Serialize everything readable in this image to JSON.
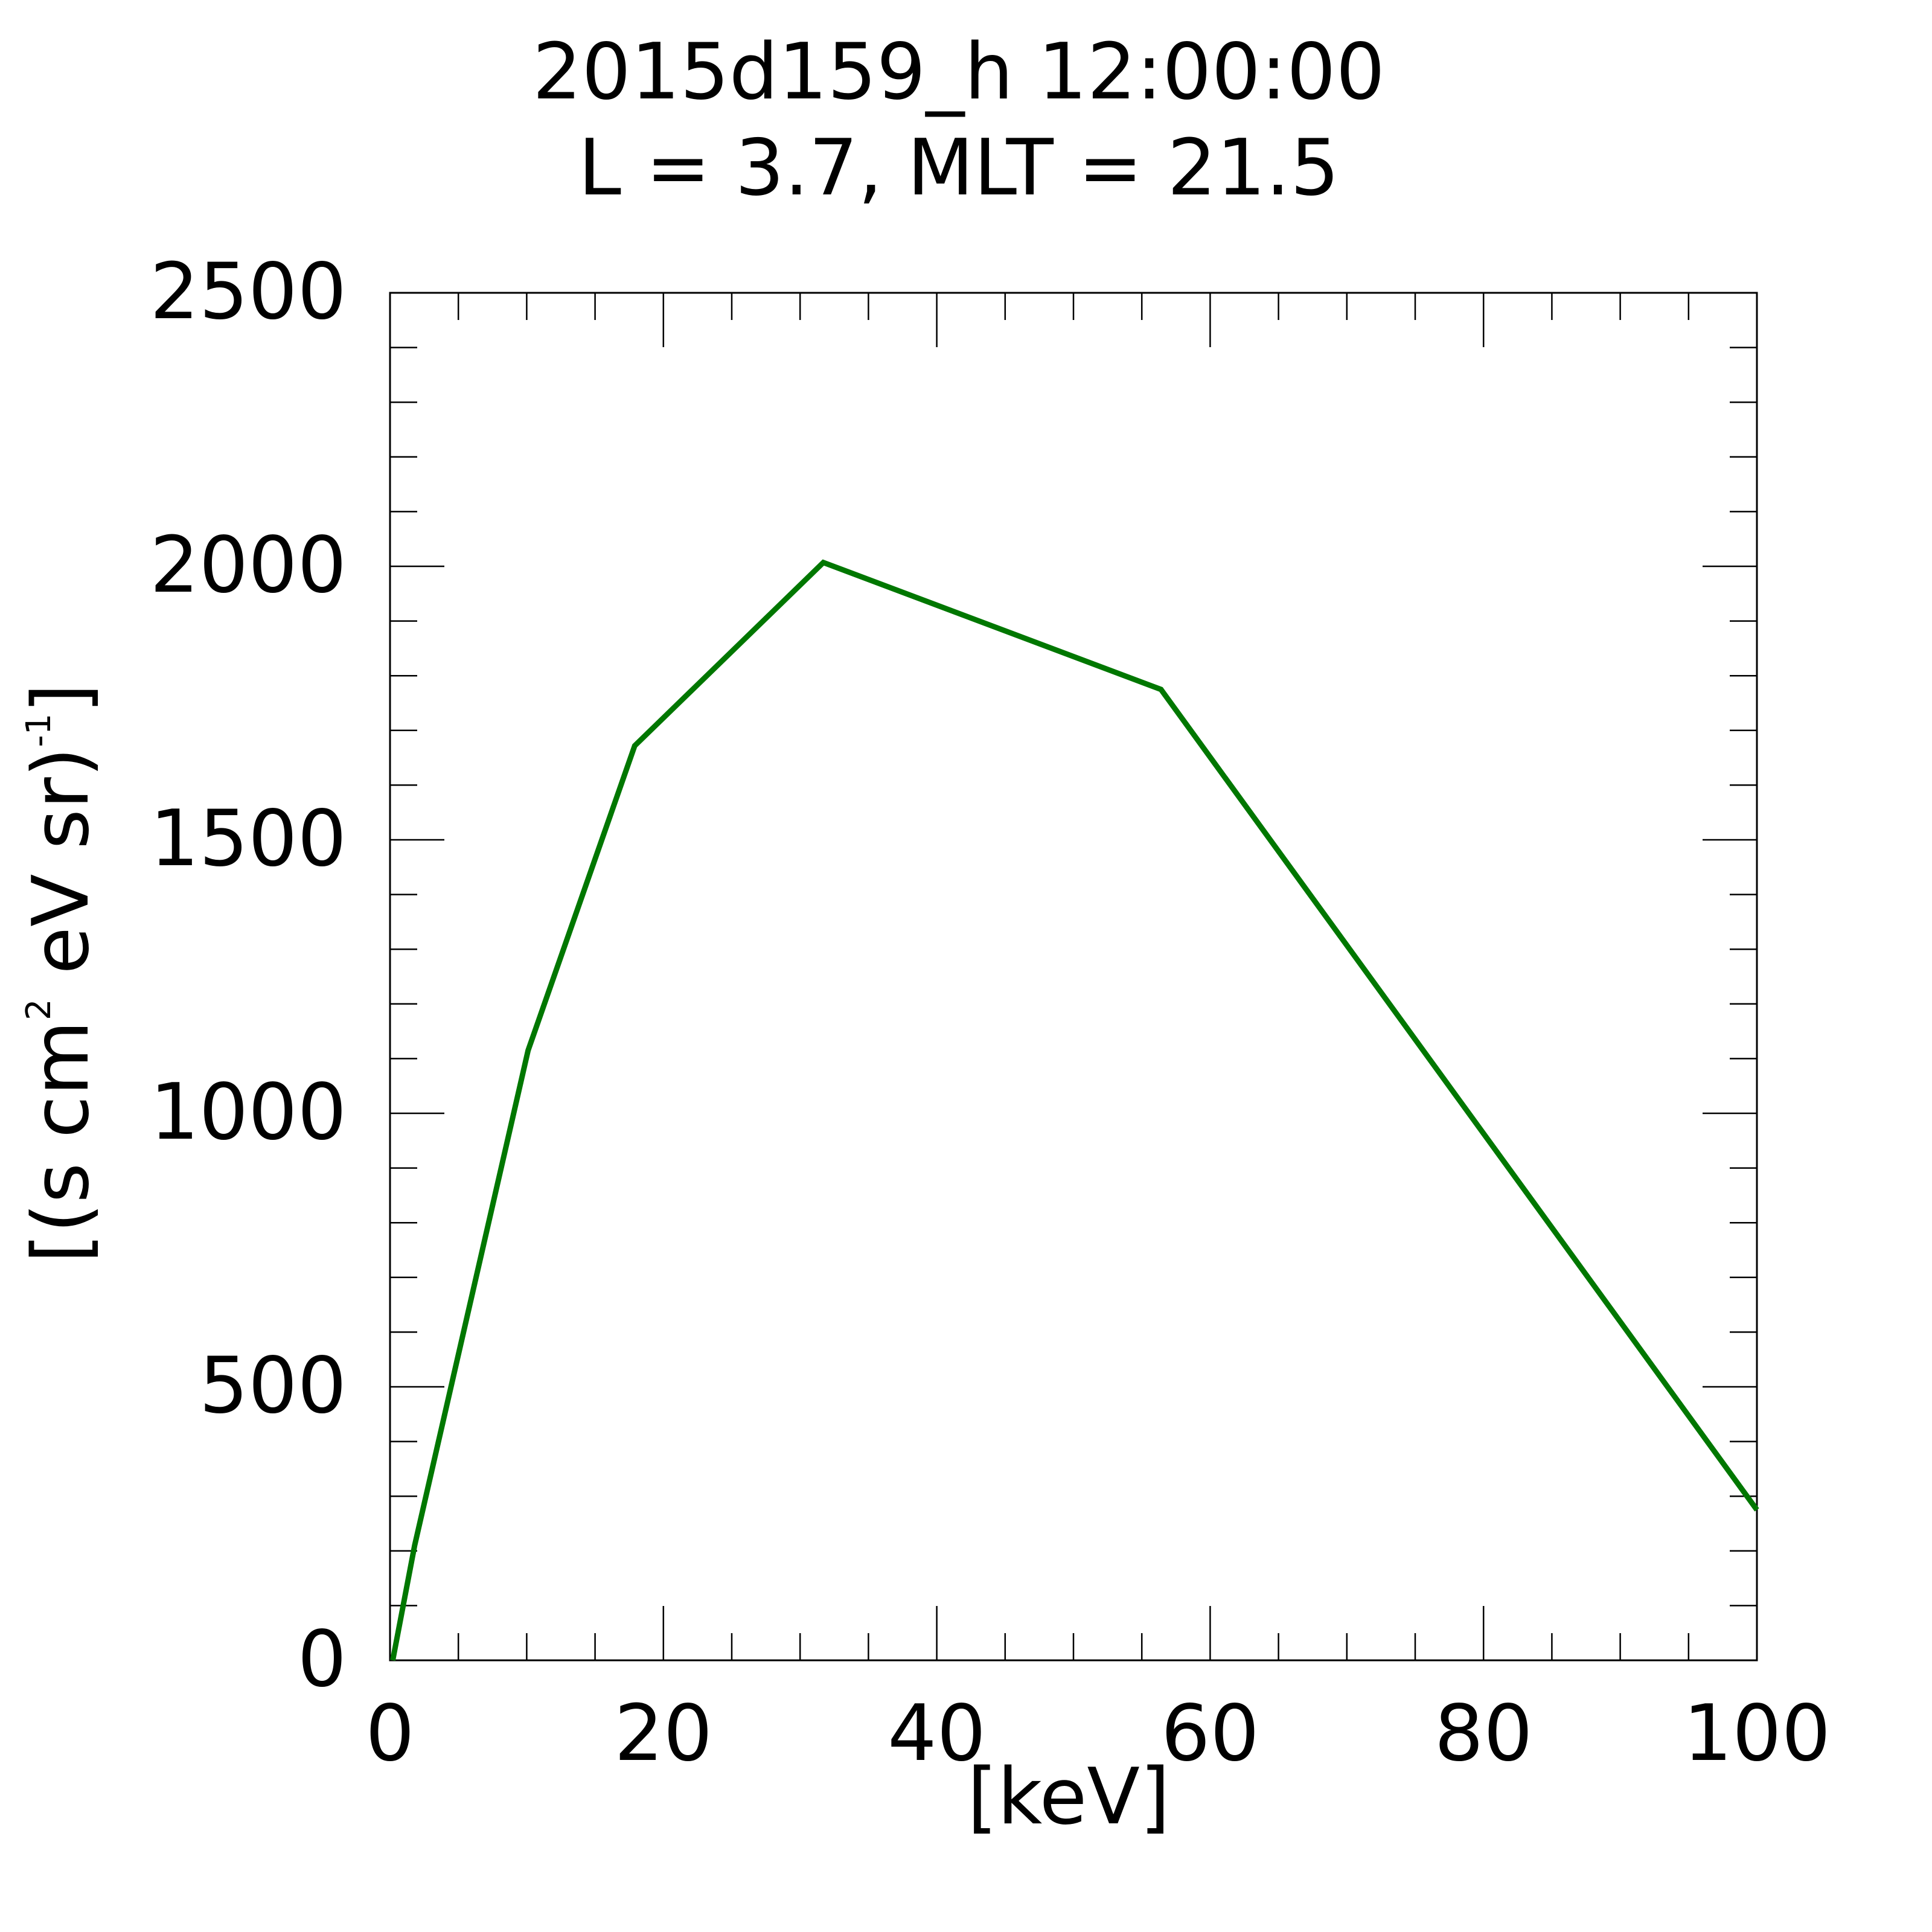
{
  "chart_data": {
    "type": "line",
    "title": "2015d159_h  12:00:00",
    "subtitle": "L = 3.7, MLT = 21.5",
    "xlabel": "[keV]",
    "ylabel": {
      "part1": "[(s cm",
      "sup1": "2",
      "part2": " eV sr)",
      "sup2": "-1",
      "part3": "]"
    },
    "xlim": [
      0,
      100
    ],
    "ylim": [
      0,
      2500
    ],
    "x_ticks": [
      0,
      20,
      40,
      60,
      80,
      100
    ],
    "y_ticks": [
      0,
      500,
      1000,
      1500,
      2000,
      2500
    ],
    "x_tick_labels": [
      "0",
      "20",
      "40",
      "60",
      "80",
      "100"
    ],
    "y_tick_labels": [
      "0",
      "500",
      "1000",
      "1500",
      "2000",
      "2500"
    ],
    "x_minor_step": 5,
    "y_minor_step": 100,
    "grid": false,
    "series": [
      {
        "color": "#007700",
        "x": [
          0.2,
          1.8,
          10.1,
          17.9,
          31.7,
          56.4,
          100
        ],
        "y": [
          0,
          210,
          1115,
          1672,
          2007,
          1775,
          275
        ]
      }
    ]
  }
}
